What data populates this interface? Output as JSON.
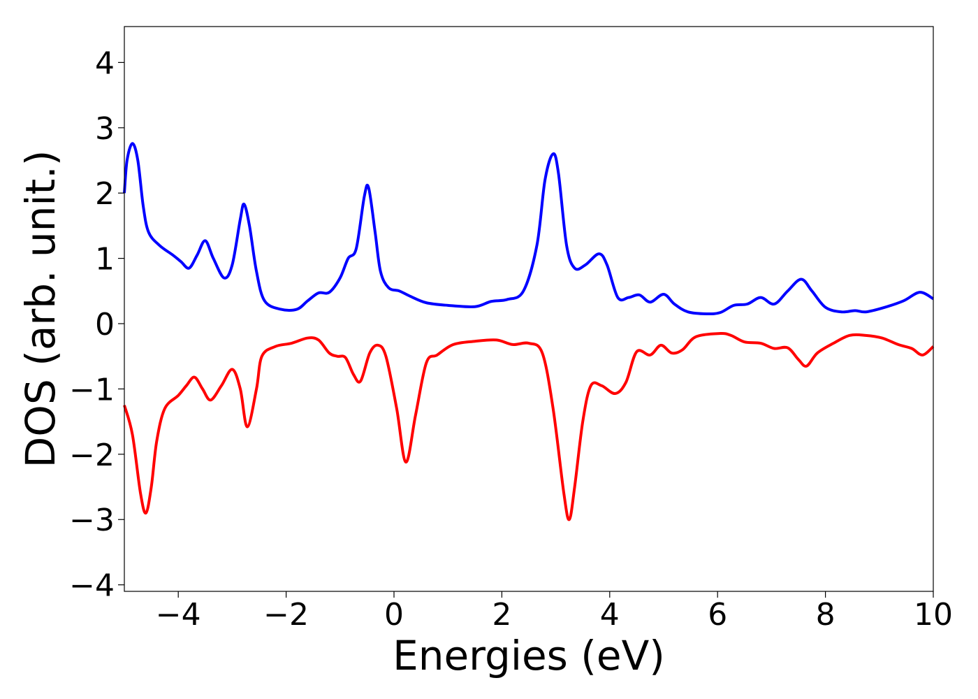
{
  "chart_data": {
    "type": "line",
    "title": "",
    "xlabel": "Energies (eV)",
    "ylabel": "DOS (arb. unit.)",
    "xlim": [
      -5,
      10
    ],
    "ylim": [
      -4.1,
      4.55
    ],
    "grid": false,
    "legend": "none",
    "x_ticks": [
      -4,
      -2,
      0,
      2,
      4,
      6,
      8,
      10
    ],
    "x_tick_labels": [
      "−4",
      "−2",
      "0",
      "2",
      "4",
      "6",
      "8",
      "10"
    ],
    "y_ticks": [
      -4,
      -3,
      -2,
      -1,
      0,
      1,
      2,
      3,
      4
    ],
    "y_tick_labels": [
      "−4",
      "−3",
      "−2",
      "−1",
      "0",
      "1",
      "2",
      "3",
      "4"
    ],
    "series": [
      {
        "color": "#0000ff",
        "points": [
          [
            -5.0,
            2.0
          ],
          [
            -4.95,
            2.5
          ],
          [
            -4.85,
            2.76
          ],
          [
            -4.75,
            2.5
          ],
          [
            -4.65,
            1.8
          ],
          [
            -4.55,
            1.4
          ],
          [
            -4.35,
            1.2
          ],
          [
            -4.1,
            1.05
          ],
          [
            -3.95,
            0.95
          ],
          [
            -3.8,
            0.85
          ],
          [
            -3.65,
            1.05
          ],
          [
            -3.5,
            1.27
          ],
          [
            -3.35,
            1.0
          ],
          [
            -3.15,
            0.7
          ],
          [
            -3.0,
            0.9
          ],
          [
            -2.85,
            1.6
          ],
          [
            -2.78,
            1.83
          ],
          [
            -2.68,
            1.5
          ],
          [
            -2.55,
            0.8
          ],
          [
            -2.4,
            0.35
          ],
          [
            -2.1,
            0.22
          ],
          [
            -1.8,
            0.22
          ],
          [
            -1.6,
            0.35
          ],
          [
            -1.4,
            0.47
          ],
          [
            -1.2,
            0.48
          ],
          [
            -1.0,
            0.7
          ],
          [
            -0.85,
            1.0
          ],
          [
            -0.7,
            1.15
          ],
          [
            -0.55,
            1.95
          ],
          [
            -0.47,
            2.08
          ],
          [
            -0.35,
            1.4
          ],
          [
            -0.25,
            0.8
          ],
          [
            -0.1,
            0.55
          ],
          [
            0.1,
            0.5
          ],
          [
            0.3,
            0.42
          ],
          [
            0.6,
            0.32
          ],
          [
            1.0,
            0.28
          ],
          [
            1.5,
            0.26
          ],
          [
            1.8,
            0.34
          ],
          [
            2.1,
            0.37
          ],
          [
            2.4,
            0.5
          ],
          [
            2.65,
            1.2
          ],
          [
            2.8,
            2.2
          ],
          [
            2.95,
            2.6
          ],
          [
            3.05,
            2.3
          ],
          [
            3.2,
            1.2
          ],
          [
            3.35,
            0.85
          ],
          [
            3.55,
            0.9
          ],
          [
            3.8,
            1.07
          ],
          [
            3.95,
            0.9
          ],
          [
            4.15,
            0.4
          ],
          [
            4.35,
            0.4
          ],
          [
            4.55,
            0.44
          ],
          [
            4.75,
            0.33
          ],
          [
            5.0,
            0.45
          ],
          [
            5.2,
            0.3
          ],
          [
            5.45,
            0.18
          ],
          [
            5.8,
            0.15
          ],
          [
            6.05,
            0.17
          ],
          [
            6.3,
            0.28
          ],
          [
            6.55,
            0.3
          ],
          [
            6.8,
            0.4
          ],
          [
            7.05,
            0.3
          ],
          [
            7.3,
            0.5
          ],
          [
            7.55,
            0.68
          ],
          [
            7.75,
            0.5
          ],
          [
            8.0,
            0.25
          ],
          [
            8.3,
            0.18
          ],
          [
            8.55,
            0.2
          ],
          [
            8.75,
            0.18
          ],
          [
            9.1,
            0.25
          ],
          [
            9.45,
            0.35
          ],
          [
            9.75,
            0.48
          ],
          [
            10.0,
            0.38
          ]
        ]
      },
      {
        "color": "#ff0000",
        "points": [
          [
            -5.0,
            -1.25
          ],
          [
            -4.85,
            -1.7
          ],
          [
            -4.7,
            -2.6
          ],
          [
            -4.6,
            -2.9
          ],
          [
            -4.5,
            -2.5
          ],
          [
            -4.4,
            -1.8
          ],
          [
            -4.25,
            -1.3
          ],
          [
            -4.0,
            -1.1
          ],
          [
            -3.85,
            -0.95
          ],
          [
            -3.7,
            -0.82
          ],
          [
            -3.55,
            -1.0
          ],
          [
            -3.4,
            -1.17
          ],
          [
            -3.2,
            -0.95
          ],
          [
            -3.0,
            -0.7
          ],
          [
            -2.85,
            -1.0
          ],
          [
            -2.72,
            -1.58
          ],
          [
            -2.55,
            -1.0
          ],
          [
            -2.45,
            -0.5
          ],
          [
            -2.2,
            -0.35
          ],
          [
            -1.9,
            -0.3
          ],
          [
            -1.6,
            -0.22
          ],
          [
            -1.4,
            -0.25
          ],
          [
            -1.2,
            -0.45
          ],
          [
            -1.05,
            -0.5
          ],
          [
            -0.9,
            -0.52
          ],
          [
            -0.75,
            -0.78
          ],
          [
            -0.62,
            -0.88
          ],
          [
            -0.45,
            -0.45
          ],
          [
            -0.3,
            -0.33
          ],
          [
            -0.15,
            -0.5
          ],
          [
            0.05,
            -1.3
          ],
          [
            0.22,
            -2.12
          ],
          [
            0.4,
            -1.4
          ],
          [
            0.6,
            -0.6
          ],
          [
            0.8,
            -0.48
          ],
          [
            1.1,
            -0.32
          ],
          [
            1.5,
            -0.27
          ],
          [
            1.9,
            -0.25
          ],
          [
            2.2,
            -0.32
          ],
          [
            2.5,
            -0.3
          ],
          [
            2.75,
            -0.45
          ],
          [
            2.95,
            -1.3
          ],
          [
            3.15,
            -2.6
          ],
          [
            3.25,
            -3.0
          ],
          [
            3.35,
            -2.5
          ],
          [
            3.5,
            -1.5
          ],
          [
            3.65,
            -0.95
          ],
          [
            3.85,
            -0.95
          ],
          [
            4.1,
            -1.07
          ],
          [
            4.3,
            -0.9
          ],
          [
            4.5,
            -0.43
          ],
          [
            4.75,
            -0.48
          ],
          [
            4.95,
            -0.33
          ],
          [
            5.15,
            -0.45
          ],
          [
            5.35,
            -0.4
          ],
          [
            5.6,
            -0.2
          ],
          [
            6.05,
            -0.15
          ],
          [
            6.25,
            -0.18
          ],
          [
            6.5,
            -0.28
          ],
          [
            6.8,
            -0.3
          ],
          [
            7.05,
            -0.38
          ],
          [
            7.3,
            -0.37
          ],
          [
            7.5,
            -0.55
          ],
          [
            7.65,
            -0.65
          ],
          [
            7.85,
            -0.45
          ],
          [
            8.15,
            -0.3
          ],
          [
            8.45,
            -0.18
          ],
          [
            8.75,
            -0.18
          ],
          [
            9.05,
            -0.22
          ],
          [
            9.35,
            -0.32
          ],
          [
            9.6,
            -0.38
          ],
          [
            9.8,
            -0.48
          ],
          [
            10.0,
            -0.35
          ]
        ]
      }
    ]
  }
}
